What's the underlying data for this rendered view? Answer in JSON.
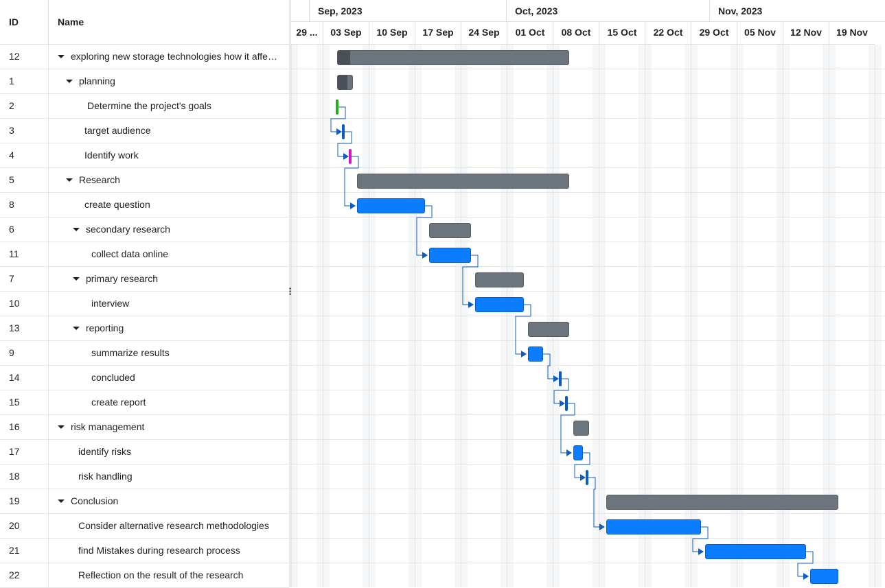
{
  "grid": {
    "col_id": "ID",
    "col_name": "Name"
  },
  "rows": [
    {
      "id": "12",
      "name": "exploring new storage technologies how it affects the industry",
      "level": 0,
      "expand": true
    },
    {
      "id": "1",
      "name": "planning",
      "level": 1,
      "expand": true
    },
    {
      "id": "2",
      "name": "Determine the project's goals",
      "level": 2,
      "expand": false
    },
    {
      "id": "3",
      "name": "target audience",
      "level": 2,
      "expand": false
    },
    {
      "id": "4",
      "name": "Identify work",
      "level": 2,
      "expand": false
    },
    {
      "id": "5",
      "name": "Research",
      "level": 1,
      "expand": true
    },
    {
      "id": "8",
      "name": "create question",
      "level": 2,
      "expand": false
    },
    {
      "id": "6",
      "name": "secondary research",
      "level": 2,
      "expand": true
    },
    {
      "id": "11",
      "name": "collect data online",
      "level": 3,
      "expand": false
    },
    {
      "id": "7",
      "name": "primary research",
      "level": 2,
      "expand": true
    },
    {
      "id": "10",
      "name": "interview",
      "level": 3,
      "expand": false
    },
    {
      "id": "13",
      "name": "reporting",
      "level": 2,
      "expand": true
    },
    {
      "id": "9",
      "name": "summarize results",
      "level": 3,
      "expand": false
    },
    {
      "id": "14",
      "name": "concluded",
      "level": 3,
      "expand": false
    },
    {
      "id": "15",
      "name": "create report",
      "level": 3,
      "expand": false
    },
    {
      "id": "16",
      "name": "risk management",
      "level": 0,
      "expand": true
    },
    {
      "id": "17",
      "name": "identify risks",
      "level": 1,
      "expand": false
    },
    {
      "id": "18",
      "name": "risk handling",
      "level": 1,
      "expand": false
    },
    {
      "id": "19",
      "name": "Conclusion",
      "level": 0,
      "expand": true
    },
    {
      "id": "20",
      "name": "Consider alternative research methodologies",
      "level": 1,
      "expand": false
    },
    {
      "id": "21",
      "name": "find Mistakes during research process",
      "level": 1,
      "expand": false
    },
    {
      "id": "22",
      "name": "Reflection on the result of the research",
      "level": 1,
      "expand": false
    }
  ],
  "timeline": {
    "months": [
      "Sep, 2023",
      "Oct, 2023",
      "Nov, 2023"
    ],
    "weeks": [
      "29 ...",
      "03 Sep",
      "10 Sep",
      "17 Sep",
      "24 Sep",
      "01 Oct",
      "08 Oct",
      "15 Oct",
      "22 Oct",
      "29 Oct",
      "05 Nov",
      "12 Nov",
      "19 Nov"
    ]
  },
  "colors": {
    "parent_bar": "#6c757d",
    "task_bar": "#0d7dff",
    "progress": "#4a5056",
    "link": "#0b5cc4",
    "milestone_green": "#1fb317",
    "milestone_blue": "#0b5cc4",
    "milestone_magenta": "#d417c6"
  }
}
